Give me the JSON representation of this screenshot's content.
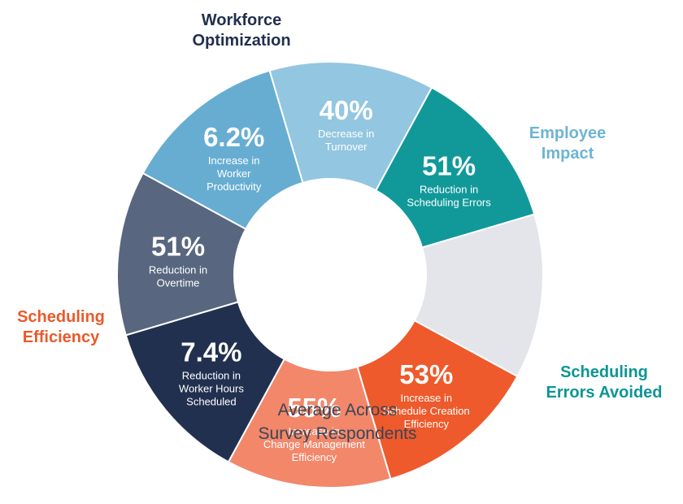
{
  "groups": {
    "workforce": {
      "lines": [
        "Workforce",
        "Optimization"
      ],
      "color": "#22304f"
    },
    "employee": {
      "lines": [
        "Employee",
        "Impact"
      ],
      "color": "#6eb4d3"
    },
    "errors": {
      "lines": [
        "Scheduling",
        "Errors Avoided"
      ],
      "color": "#0d9595"
    },
    "efficiency": {
      "lines": [
        "Scheduling",
        "Efficiency"
      ],
      "color": "#ea5a2b"
    }
  },
  "center": {
    "lines": [
      "Average Across",
      "Survey Respondents"
    ]
  },
  "segments": [
    {
      "id": "overtime",
      "value": "51%",
      "desc": [
        "Reduction in",
        "Overtime"
      ],
      "color": "#58677f"
    },
    {
      "id": "productivity",
      "value": "6.2%",
      "desc": [
        "Increase in",
        "Worker",
        "Productivity"
      ],
      "color": "#67add2"
    },
    {
      "id": "turnover",
      "value": "40%",
      "desc": [
        "Decrease in",
        "Turnover"
      ],
      "color": "#93c6e0"
    },
    {
      "id": "scheduling-errors",
      "value": "51%",
      "desc": [
        "Reduction in",
        "Scheduling Errors"
      ],
      "color": "#11999a"
    },
    {
      "id": "average",
      "value": "",
      "desc": [],
      "color": "#e4e5ea"
    },
    {
      "id": "schedule-creation",
      "value": "53%",
      "desc": [
        "Increase in",
        "Schedule Creation",
        "Efficiency"
      ],
      "color": "#ee5a2b"
    },
    {
      "id": "change-management",
      "value": "55%",
      "desc": [
        "Increase in",
        "Change Management",
        "Efficiency"
      ],
      "color": "#f2876a"
    },
    {
      "id": "worker-hours",
      "value": "7.4%",
      "desc": [
        "Reduction in",
        "Worker Hours",
        "Scheduled"
      ],
      "color": "#22304f"
    }
  ]
}
